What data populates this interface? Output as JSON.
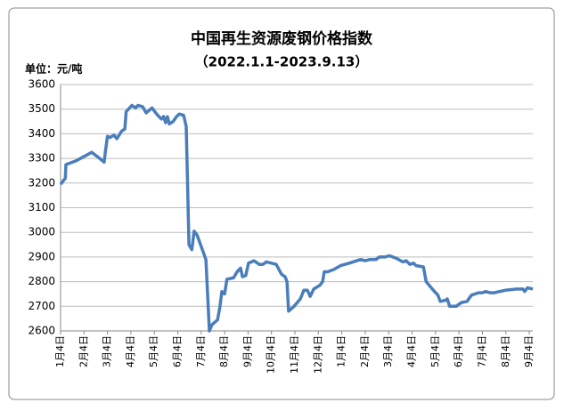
{
  "chart_data": {
    "type": "line",
    "title": "中国再生资源废钢价格指数",
    "subtitle": "（2022.1.1-2023.9.13）",
    "y_label": "单位：元/吨",
    "ylim": [
      2600,
      3600
    ],
    "yticks": [
      2600,
      2700,
      2800,
      2900,
      3000,
      3100,
      3200,
      3300,
      3400,
      3500,
      3600
    ],
    "xlim": [
      0,
      20.15
    ],
    "xticks": [
      {
        "value": 0,
        "label": "1月4日"
      },
      {
        "value": 1,
        "label": "2月4日"
      },
      {
        "value": 2,
        "label": "3月4日"
      },
      {
        "value": 3,
        "label": "4月4日"
      },
      {
        "value": 4,
        "label": "5月4日"
      },
      {
        "value": 5,
        "label": "6月4日"
      },
      {
        "value": 6,
        "label": "7月4日"
      },
      {
        "value": 7,
        "label": "8月4日"
      },
      {
        "value": 8,
        "label": "9月4日"
      },
      {
        "value": 9,
        "label": "10月4日"
      },
      {
        "value": 10,
        "label": "11月4日"
      },
      {
        "value": 11,
        "label": "12月4日"
      },
      {
        "value": 12,
        "label": "1月4日"
      },
      {
        "value": 13,
        "label": "2月4日"
      },
      {
        "value": 14,
        "label": "3月4日"
      },
      {
        "value": 15,
        "label": "4月4日"
      },
      {
        "value": 16,
        "label": "5月4日"
      },
      {
        "value": 17,
        "label": "6月4日"
      },
      {
        "value": 18,
        "label": "7月4日"
      },
      {
        "value": 19,
        "label": "8月4日"
      },
      {
        "value": 20,
        "label": "9月4日"
      }
    ],
    "grid": true,
    "series": [
      {
        "color": "#4a7ebb",
        "x": [
          0,
          0.2,
          0.23,
          0.65,
          1.33,
          1.67,
          1.86,
          1.9,
          2.0,
          2.1,
          2.28,
          2.4,
          2.6,
          2.74,
          2.8,
          3.04,
          3.2,
          3.3,
          3.5,
          3.65,
          3.9,
          4.1,
          4.3,
          4.4,
          4.48,
          4.56,
          4.64,
          4.8,
          4.95,
          5.06,
          5.25,
          5.36,
          5.48,
          5.6,
          5.7,
          5.82,
          6.2,
          6.35,
          6.46,
          6.7,
          6.8,
          6.88,
          7.0,
          7.1,
          7.38,
          7.53,
          7.68,
          7.76,
          7.9,
          8.02,
          8.25,
          8.48,
          8.63,
          8.78,
          9.0,
          9.2,
          9.43,
          9.58,
          9.66,
          9.73,
          9.96,
          10.23,
          10.38,
          10.53,
          10.65,
          10.8,
          11.06,
          11.18,
          11.25,
          11.4,
          11.67,
          11.94,
          12.32,
          12.8,
          13.0,
          13.2,
          13.46,
          13.6,
          13.84,
          14.03,
          14.33,
          14.6,
          14.75,
          14.9,
          15.06,
          15.17,
          15.48,
          15.6,
          15.86,
          16.1,
          16.2,
          16.43,
          16.5,
          16.6,
          16.88,
          17.1,
          17.34,
          17.53,
          17.83,
          17.98,
          18.14,
          18.33,
          18.5,
          18.97,
          19.47,
          19.73,
          19.8,
          19.92,
          20.15
        ],
        "values": [
          3195,
          3220,
          3275,
          3290,
          3325,
          3300,
          3285,
          3320,
          3390,
          3385,
          3395,
          3380,
          3410,
          3420,
          3490,
          3515,
          3505,
          3515,
          3510,
          3485,
          3505,
          3480,
          3460,
          3470,
          3445,
          3470,
          3440,
          3450,
          3470,
          3480,
          3475,
          3430,
          2950,
          2930,
          3005,
          2990,
          2890,
          2600,
          2625,
          2645,
          2700,
          2760,
          2750,
          2810,
          2815,
          2840,
          2855,
          2820,
          2825,
          2875,
          2885,
          2870,
          2870,
          2880,
          2875,
          2870,
          2830,
          2820,
          2800,
          2680,
          2700,
          2730,
          2765,
          2765,
          2740,
          2770,
          2785,
          2800,
          2840,
          2840,
          2850,
          2865,
          2875,
          2890,
          2885,
          2890,
          2890,
          2900,
          2900,
          2905,
          2895,
          2880,
          2885,
          2870,
          2875,
          2865,
          2860,
          2800,
          2770,
          2745,
          2720,
          2725,
          2730,
          2700,
          2700,
          2715,
          2720,
          2745,
          2755,
          2755,
          2760,
          2755,
          2755,
          2765,
          2770,
          2770,
          2760,
          2775,
          2770
        ]
      }
    ]
  }
}
